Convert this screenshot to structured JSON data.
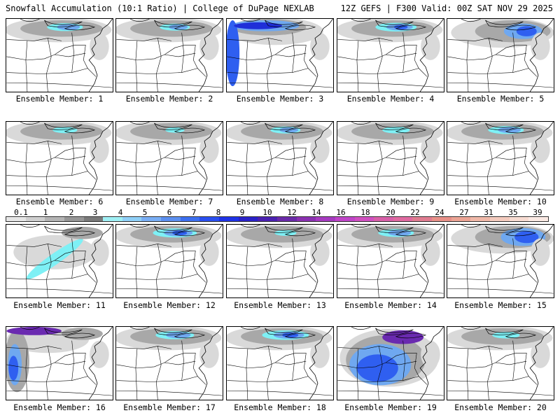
{
  "header": {
    "left_title": "Snowfall Accumulation (10:1 Ratio) | College of DuPage NEXLAB",
    "right_title": "12Z GEFS | F300 Valid: 00Z SAT NOV 29 2025"
  },
  "panels": [
    {
      "label": "Ensemble Member: 1",
      "intensity": 0.45,
      "style": "north"
    },
    {
      "label": "Ensemble Member: 2",
      "intensity": 0.35,
      "style": "north"
    },
    {
      "label": "Ensemble Member: 3",
      "intensity": 0.85,
      "style": "northwest"
    },
    {
      "label": "Ensemble Member: 4",
      "intensity": 0.55,
      "style": "north"
    },
    {
      "label": "Ensemble Member: 5",
      "intensity": 0.6,
      "style": "northeast"
    },
    {
      "label": "Ensemble Member: 6",
      "intensity": 0.25,
      "style": "north"
    },
    {
      "label": "Ensemble Member: 7",
      "intensity": 0.15,
      "style": "north"
    },
    {
      "label": "Ensemble Member: 8",
      "intensity": 0.35,
      "style": "north"
    },
    {
      "label": "Ensemble Member: 9",
      "intensity": 0.3,
      "style": "north"
    },
    {
      "label": "Ensemble Member: 10",
      "intensity": 0.45,
      "style": "north"
    },
    {
      "label": "Ensemble Member: 11",
      "intensity": 0.4,
      "style": "diagonal"
    },
    {
      "label": "Ensemble Member: 12",
      "intensity": 0.6,
      "style": "north"
    },
    {
      "label": "Ensemble Member: 13",
      "intensity": 0.2,
      "style": "north"
    },
    {
      "label": "Ensemble Member: 14",
      "intensity": 0.45,
      "style": "north"
    },
    {
      "label": "Ensemble Member: 15",
      "intensity": 0.75,
      "style": "northeast"
    },
    {
      "label": "Ensemble Member: 16",
      "intensity": 0.8,
      "style": "west"
    },
    {
      "label": "Ensemble Member: 17",
      "intensity": 0.5,
      "style": "north"
    },
    {
      "label": "Ensemble Member: 18",
      "intensity": 0.65,
      "style": "north"
    },
    {
      "label": "Ensemble Member: 19",
      "intensity": 0.95,
      "style": "broad"
    },
    {
      "label": "Ensemble Member: 20",
      "intensity": 0.3,
      "style": "north"
    }
  ],
  "colorbar": {
    "labels": [
      "0.1",
      "1",
      "2",
      "3",
      "4",
      "5",
      "6",
      "7",
      "8",
      "9",
      "10",
      "12",
      "14",
      "16",
      "18",
      "20",
      "22",
      "24",
      "27",
      "31",
      "35",
      "39"
    ],
    "colors": [
      "#e6e6e6",
      "#cfcfcf",
      "#b4b4b4",
      "#969696",
      "#7a7a7a",
      "#9ff0f5",
      "#8fd0f8",
      "#79aef5",
      "#5b8ff0",
      "#3c6ff0",
      "#2a4ff0",
      "#1f33e6",
      "#2a22c8",
      "#4a20b0",
      "#6a2aa8",
      "#8a30b0",
      "#a63ac0",
      "#c045c8",
      "#d050c0",
      "#d860a8",
      "#e06aa0",
      "#e07c90",
      "#e89088",
      "#eca494",
      "#f0b8a8",
      "#f4cbbe",
      "#f8dcd2",
      "#fbeae4"
    ]
  },
  "colors": {
    "light_gray": "#d9d9d9",
    "mid_gray": "#a8a8a8",
    "dark_gray": "#6f6f6f",
    "cyan": "#7ef0f5",
    "light_blue": "#6fa8f0",
    "blue": "#2f5ff0",
    "deep_blue": "#1f2fd8",
    "purple": "#6a2ab0",
    "magenta": "#c040b8"
  }
}
